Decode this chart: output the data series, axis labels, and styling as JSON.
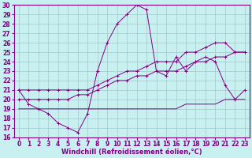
{
  "xlabel": "Windchill (Refroidissement éolien,°C)",
  "background_color": "#c8f0f0",
  "grid_color": "#a0c8c8",
  "line_color": "#800080",
  "xlim": [
    -0.5,
    23.5
  ],
  "ylim": [
    16,
    30
  ],
  "xticks": [
    0,
    1,
    2,
    3,
    4,
    5,
    6,
    7,
    8,
    9,
    10,
    11,
    12,
    13,
    14,
    15,
    16,
    17,
    18,
    19,
    20,
    21,
    22,
    23
  ],
  "yticks": [
    16,
    17,
    18,
    19,
    20,
    21,
    22,
    23,
    24,
    25,
    26,
    27,
    28,
    29,
    30
  ],
  "series1_y": [
    21,
    19.5,
    19,
    18.5,
    17.5,
    17,
    16.5,
    18.5,
    23,
    26,
    28,
    29,
    30,
    29.5,
    23,
    22.5,
    24.5,
    23,
    24,
    24.5,
    24,
    21.5,
    20,
    21
  ],
  "series2_y": [
    19,
    19,
    19,
    19,
    19,
    19,
    19,
    19,
    19,
    19,
    19,
    19,
    19,
    19,
    19,
    19,
    19,
    19.5,
    19.5,
    19.5,
    19.5,
    20,
    20,
    20
  ],
  "series3_y": [
    20,
    20,
    20,
    20,
    20,
    20,
    20.5,
    20.5,
    21,
    21.5,
    22,
    22,
    22.5,
    22.5,
    23,
    23,
    23,
    23.5,
    24,
    24,
    24.5,
    24.5,
    25,
    25
  ],
  "series4_y": [
    21,
    21,
    21,
    21,
    21,
    21,
    21,
    21,
    21.5,
    22,
    22.5,
    23,
    23,
    23.5,
    24,
    24,
    24,
    25,
    25,
    25.5,
    26,
    26,
    25,
    25
  ],
  "tick_fontsize": 5.5,
  "label_fontsize": 6
}
